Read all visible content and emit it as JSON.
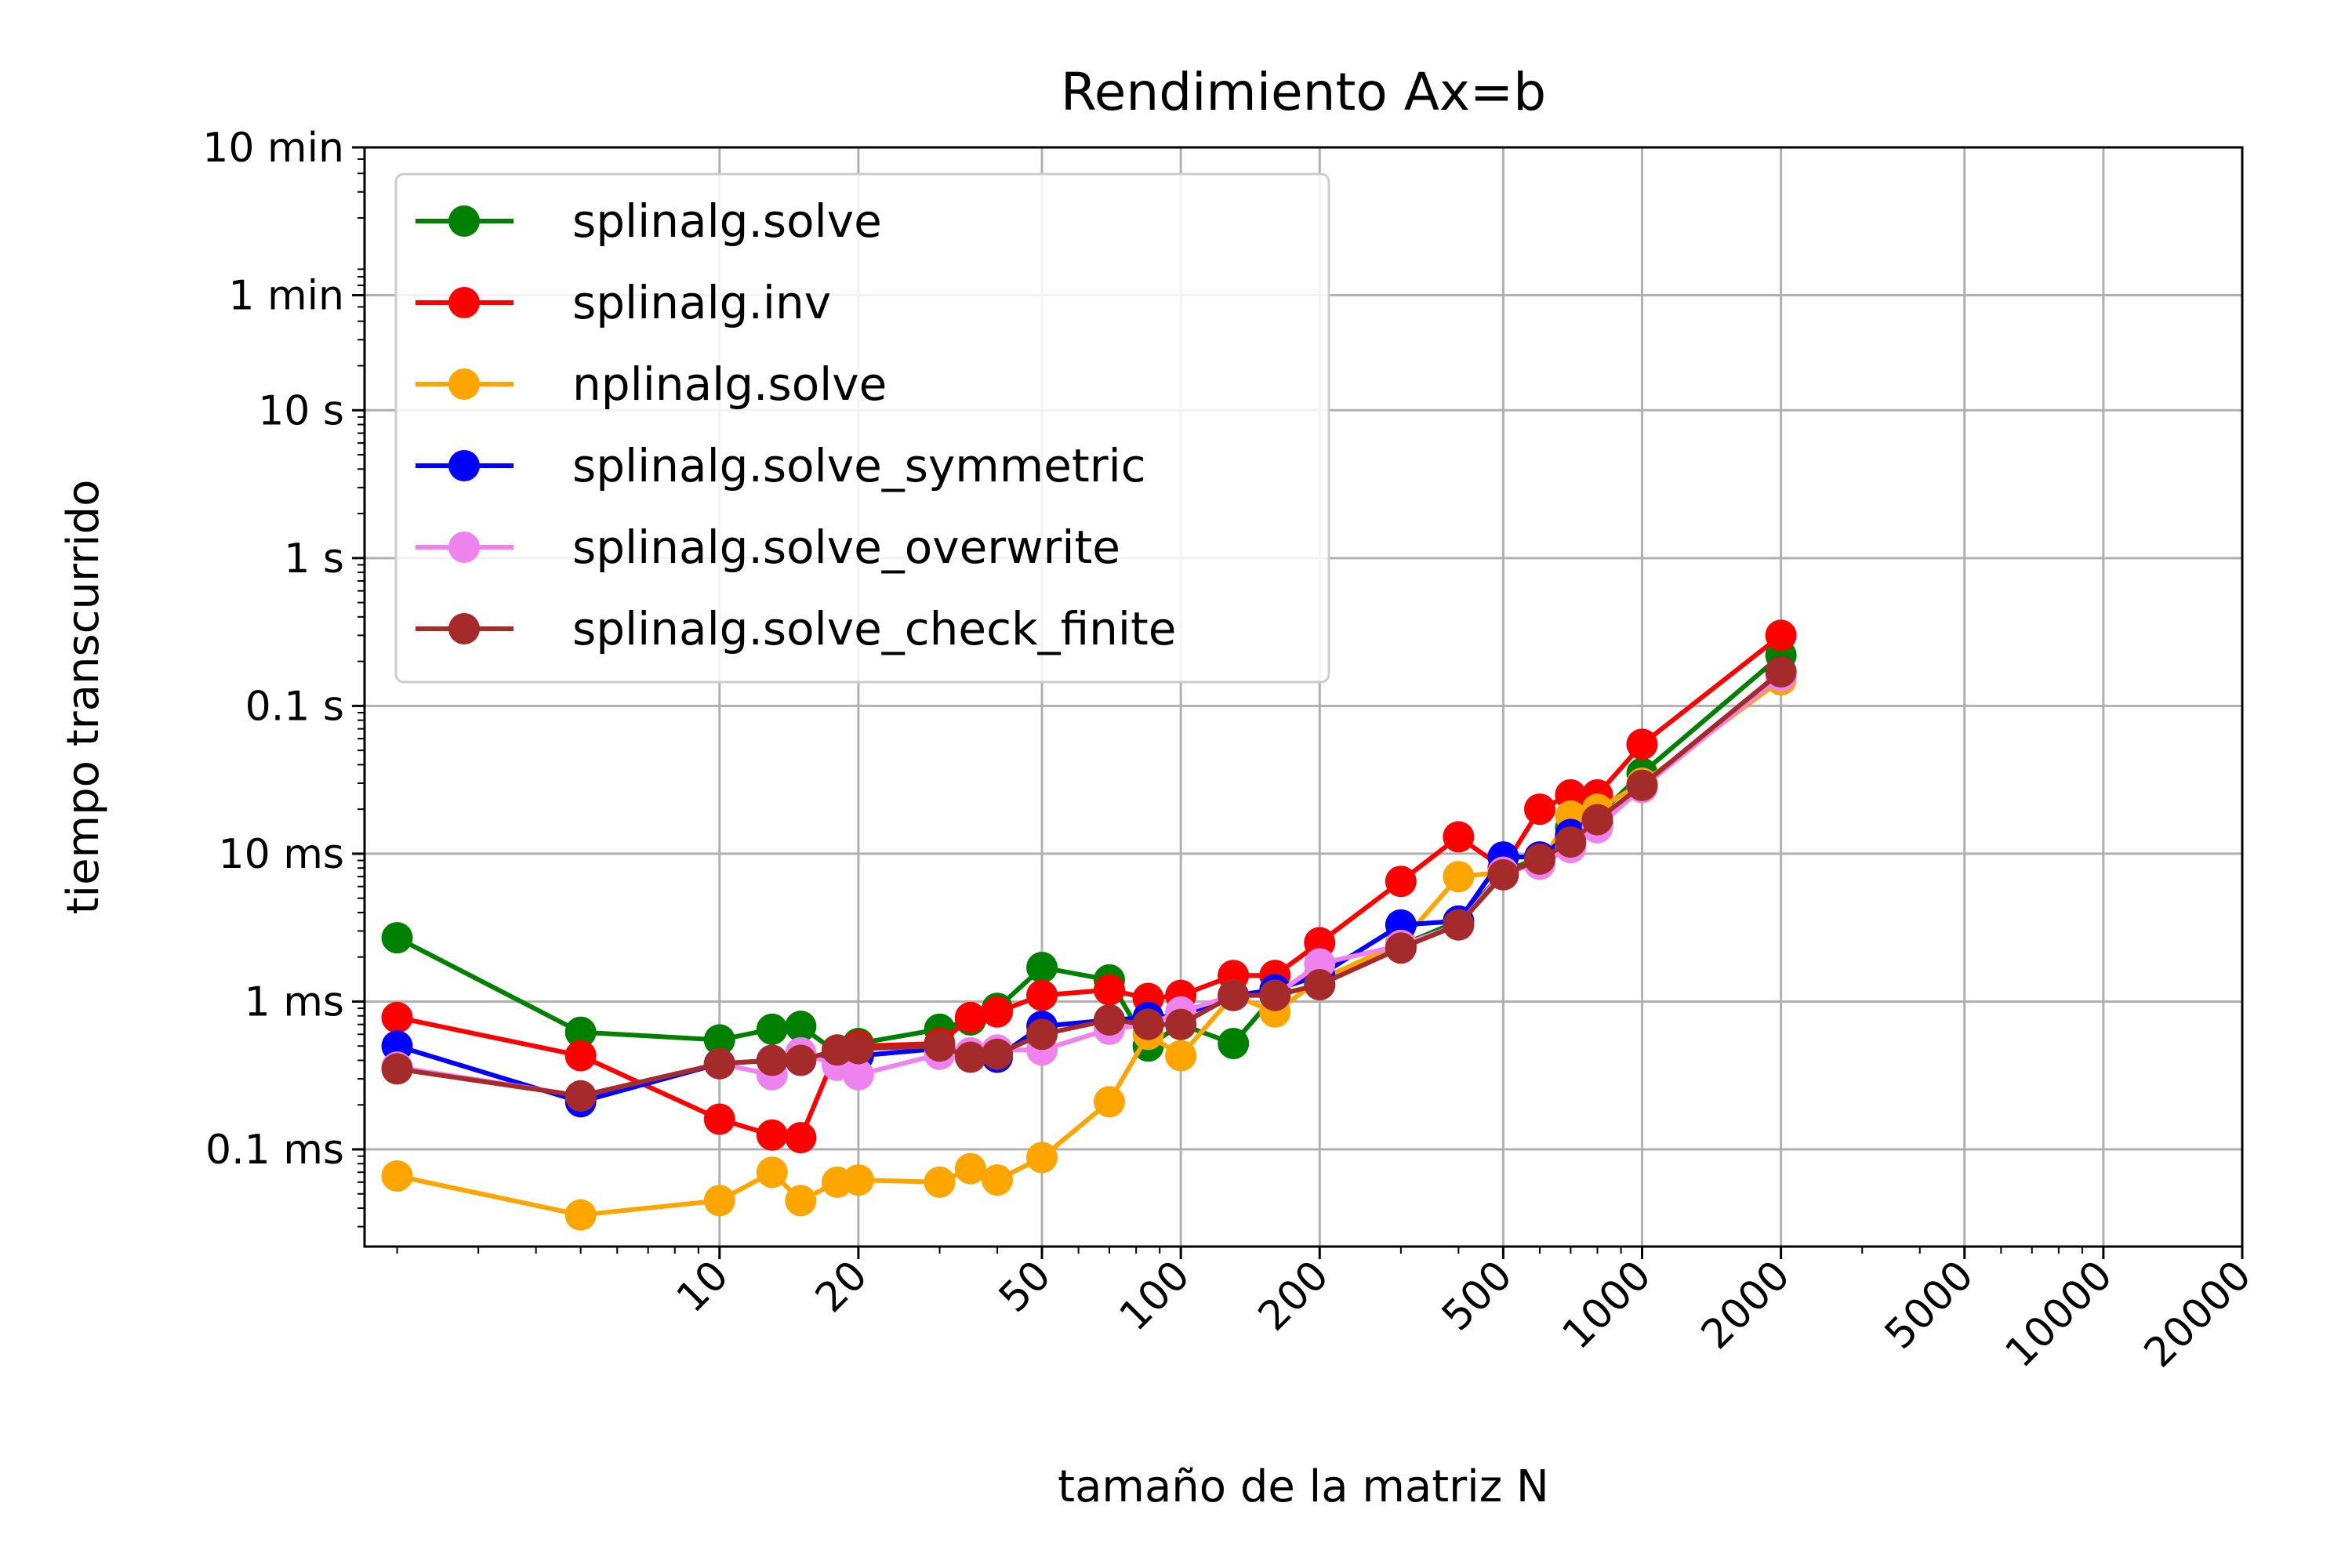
{
  "chart_data": {
    "type": "line",
    "title": "Rendimiento Ax=b",
    "xlabel": "tamaño de la matriz N",
    "ylabel": "tiempo transcurrido",
    "x_scale": "log",
    "y_scale": "log",
    "xlim": [
      1.7,
      20000
    ],
    "ylim": [
      2.2e-05,
      600
    ],
    "grid": true,
    "legend_position": "top-left",
    "x_ticks": [
      {
        "value": 10,
        "label": "10"
      },
      {
        "value": 20,
        "label": "20"
      },
      {
        "value": 50,
        "label": "50"
      },
      {
        "value": 100,
        "label": "100"
      },
      {
        "value": 200,
        "label": "200"
      },
      {
        "value": 500,
        "label": "500"
      },
      {
        "value": 1000,
        "label": "1000"
      },
      {
        "value": 2000,
        "label": "2000"
      },
      {
        "value": 5000,
        "label": "5000"
      },
      {
        "value": 10000,
        "label": "10000"
      },
      {
        "value": 20000,
        "label": "20000"
      }
    ],
    "y_ticks": [
      {
        "value": 0.0001,
        "label": "0.1 ms"
      },
      {
        "value": 0.001,
        "label": "1 ms"
      },
      {
        "value": 0.01,
        "label": "10 ms"
      },
      {
        "value": 0.1,
        "label": "0.1 s"
      },
      {
        "value": 1,
        "label": "1 s"
      },
      {
        "value": 10,
        "label": "10 s"
      },
      {
        "value": 60,
        "label": "1 min"
      },
      {
        "value": 600,
        "label": "10 min"
      }
    ],
    "x": [
      2,
      5,
      10,
      13,
      15,
      18,
      20,
      30,
      35,
      40,
      50,
      70,
      85,
      100,
      130,
      160,
      200,
      300,
      400,
      500,
      600,
      700,
      800,
      1000,
      2000
    ],
    "series": [
      {
        "name": "splinalg.solve",
        "color": "#008000",
        "values": [
          0.0027,
          0.00062,
          0.00055,
          0.00065,
          0.00068,
          0.00045,
          0.00052,
          0.00065,
          0.00075,
          0.0009,
          0.0017,
          0.0014,
          0.0005,
          0.0007,
          0.00052,
          0.0011,
          0.0013,
          0.0024,
          0.0035,
          0.0075,
          0.0095,
          0.015,
          0.018,
          0.035,
          0.22
        ]
      },
      {
        "name": "splinalg.inv",
        "color": "#ff0000",
        "values": [
          0.00078,
          0.00043,
          0.00016,
          0.000125,
          0.00012,
          0.00047,
          0.0005,
          0.00052,
          0.00078,
          0.00085,
          0.0011,
          0.0012,
          0.00105,
          0.0011,
          0.0015,
          0.0015,
          0.0025,
          0.0065,
          0.013,
          0.008,
          0.02,
          0.025,
          0.025,
          0.055,
          0.3
        ]
      },
      {
        "name": "nplinalg.solve",
        "color": "#ffa500",
        "values": [
          6.6e-05,
          3.6e-05,
          4.5e-05,
          7e-05,
          4.5e-05,
          6e-05,
          6.2e-05,
          6e-05,
          7.4e-05,
          6.2e-05,
          8.8e-05,
          0.00021,
          0.0006,
          0.00043,
          0.0011,
          0.00085,
          0.0014,
          0.0025,
          0.007,
          0.0075,
          0.0085,
          0.018,
          0.02,
          0.03,
          0.15
        ]
      },
      {
        "name": "splinalg.solve_symmetric",
        "color": "#0000ff",
        "values": [
          0.0005,
          0.00021,
          0.00038,
          0.0004,
          0.00042,
          0.00042,
          0.00043,
          0.00048,
          0.00043,
          0.00042,
          0.00068,
          0.00075,
          0.00078,
          0.0008,
          0.0011,
          0.0012,
          0.0015,
          0.0033,
          0.0035,
          0.0095,
          0.0095,
          0.0135,
          0.016,
          0.029,
          0.17
        ]
      },
      {
        "name": "splinalg.solve_overwrite",
        "color": "#ee82ee",
        "values": [
          0.00036,
          0.00023,
          0.00038,
          0.00032,
          0.00045,
          0.00037,
          0.00032,
          0.00044,
          0.00045,
          0.00047,
          0.00047,
          0.00065,
          0.0007,
          0.00085,
          0.0011,
          0.0011,
          0.0018,
          0.0024,
          0.0033,
          0.0075,
          0.0085,
          0.011,
          0.015,
          0.028,
          0.16
        ]
      },
      {
        "name": "splinalg.solve_check_finite",
        "color": "#a52a2a",
        "values": [
          0.00035,
          0.00023,
          0.00038,
          0.0004,
          0.0004,
          0.00047,
          0.00048,
          0.0005,
          0.00042,
          0.00044,
          0.0006,
          0.00075,
          0.0007,
          0.0007,
          0.0011,
          0.0011,
          0.0013,
          0.0023,
          0.0033,
          0.0072,
          0.0092,
          0.012,
          0.017,
          0.029,
          0.17
        ]
      }
    ]
  }
}
